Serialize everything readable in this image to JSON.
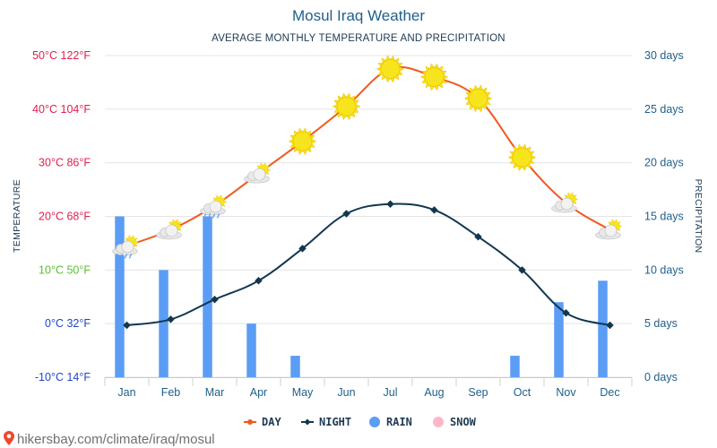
{
  "footer": {
    "site": "hikersbay.com/climate/iraq/mosul"
  },
  "chart_data": {
    "type": "line",
    "title": "Mosul Iraq Weather",
    "subtitle": "AVERAGE MONTHLY TEMPERATURE AND PRECIPITATION",
    "ylabel_left": "TEMPERATURE",
    "ylabel_right": "PRECIPITATION",
    "categories": [
      "Jan",
      "Feb",
      "Mar",
      "Apr",
      "May",
      "Jun",
      "Jul",
      "Aug",
      "Sep",
      "Oct",
      "Nov",
      "Dec"
    ],
    "y_left": {
      "min": -10,
      "max": 50,
      "unit": "°C",
      "ticks": [
        {
          "value": 50,
          "label": "50°C 122°F",
          "color": "#e0204f"
        },
        {
          "value": 40,
          "label": "40°C 104°F",
          "color": "#e0204f"
        },
        {
          "value": 30,
          "label": "30°C 86°F",
          "color": "#e0204f"
        },
        {
          "value": 20,
          "label": "20°C 68°F",
          "color": "#e0204f"
        },
        {
          "value": 10,
          "label": "10°C 50°F",
          "color": "#5cbf34"
        },
        {
          "value": 0,
          "label": "0°C 32°F",
          "color": "#2144c9"
        },
        {
          "value": -10,
          "label": "-10°C 14°F",
          "color": "#2144c9"
        }
      ]
    },
    "y_right": {
      "min": 0,
      "max": 30,
      "unit": "days",
      "ticks": [
        {
          "value": 30,
          "label": "30 days"
        },
        {
          "value": 25,
          "label": "25 days"
        },
        {
          "value": 20,
          "label": "20 days"
        },
        {
          "value": 15,
          "label": "15 days"
        },
        {
          "value": 10,
          "label": "10 days"
        },
        {
          "value": 5,
          "label": "5 days"
        },
        {
          "value": 0,
          "label": "0 days"
        }
      ]
    },
    "series": [
      {
        "name": "DAY",
        "kind": "line",
        "axis": "left",
        "color": "#f05a1e",
        "values": [
          14.5,
          17.5,
          22,
          28,
          34,
          40.5,
          47.5,
          46,
          42,
          31,
          22.5,
          17.5
        ]
      },
      {
        "name": "NIGHT",
        "kind": "line",
        "axis": "left",
        "color": "#12374f",
        "values": [
          -0.3,
          0.8,
          4.5,
          8,
          14,
          20.5,
          22.3,
          21.2,
          16.2,
          10,
          2,
          -0.3
        ]
      },
      {
        "name": "RAIN",
        "kind": "bar",
        "axis": "right",
        "color": "#5b9df5",
        "values": [
          15,
          10,
          15,
          5,
          2,
          0,
          0,
          0,
          0,
          2,
          7,
          9
        ]
      },
      {
        "name": "SNOW",
        "kind": "bar",
        "axis": "right",
        "color": "#ffb6c8",
        "values": [
          0,
          0,
          0,
          0,
          0,
          0,
          0,
          0,
          0,
          0,
          0,
          0
        ]
      }
    ],
    "day_icons": [
      "partly-cloudy-rain",
      "partly-cloudy",
      "partly-cloudy-rain",
      "partly-cloudy",
      "sunny",
      "sunny",
      "sunny",
      "sunny",
      "sunny",
      "sunny",
      "partly-cloudy",
      "partly-cloudy"
    ],
    "colors": {
      "title": "#1f5f8b",
      "axis_label": "#1e3a52",
      "right_tick": "#1f5f8b",
      "month_label": "#1f5f8b",
      "grid": "#e4e4e4",
      "sun": "#f6e51c",
      "sun_stroke": "#f2c200",
      "cloud": "#e8e8e8"
    }
  }
}
